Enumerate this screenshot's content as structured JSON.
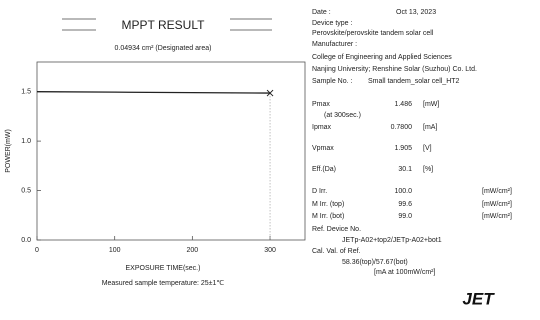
{
  "chart_data": {
    "type": "line",
    "title": "MPPT RESULT",
    "subtitle": "0.04934 cm² (Designated area)",
    "x_label": "EXPOSURE TIME(sec.)",
    "y_label": "POWER(mW)",
    "note": "Measured sample temperature: 25±1℃",
    "x": [
      0,
      100,
      200,
      300
    ],
    "series": [
      {
        "name": "Pmax",
        "color": "#222222",
        "values": [
          1.5,
          1.495,
          1.49,
          1.486
        ]
      }
    ],
    "xlim": [
      0,
      345
    ],
    "ylim": [
      0,
      1.8
    ],
    "xticks": [
      0,
      100,
      200,
      300
    ],
    "yticks": [
      {
        "value": 0,
        "label": "0.0"
      },
      0.5,
      {
        "value": 1,
        "label": "1.0"
      },
      1.5
    ],
    "grid": false
  },
  "report": {
    "date_label": "Date :",
    "date": "Oct 13, 2023",
    "device_type_label": "Device type :",
    "device_type": "Perovskite/perovskite tandem solar cell",
    "manufacturer_label": "Manufacturer :",
    "manufacturer": [
      "College of Engineering and Applied Sciences",
      "Nanjing University; Renshine Solar (Suzhou) Co. Ltd."
    ],
    "sample_label": "Sample No. :",
    "sample": "Small tandem_solar cell_HT2",
    "rows": [
      {
        "label": "Pmax",
        "value": "1.486",
        "unit": "[mW]"
      },
      {
        "label": "(at 300sec.)"
      },
      {
        "label": "Ipmax",
        "value": "0.7800",
        "unit": "[mA]"
      },
      {
        "label": "Vpmax",
        "value": "1.905",
        "unit": "[V]"
      },
      {
        "label": "Eff.(Da)",
        "value": "30.1",
        "unit": "[%]"
      },
      {
        "label": "D Irr.",
        "value": "100.0",
        "unit": "[mW/cm²]"
      },
      {
        "label": "M Irr. (top)",
        "value": "99.6",
        "unit": "[mW/cm²]"
      },
      {
        "label": "M Irr. (bot)",
        "value": "99.0",
        "unit": "[mW/cm²]"
      }
    ],
    "ref_label": "Ref. Device No.",
    "ref": "JETp-A02+top2/JETp-A02+bot1",
    "cal_label": "Cal. Val. of Ref.",
    "cal": "58.36(top)/57.67(bot)",
    "cal_unit": "[mA at 100mW/cm²]",
    "logo": "JET"
  }
}
